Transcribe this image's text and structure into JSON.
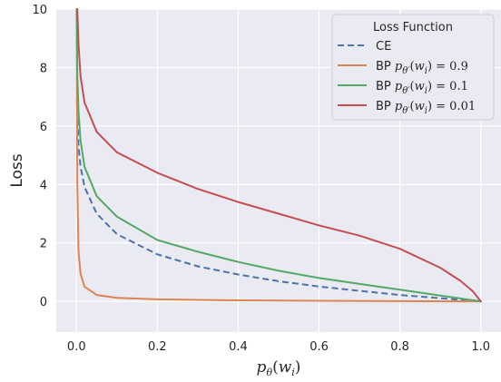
{
  "chart_data": {
    "type": "line",
    "xlabel": "pθ(wi)",
    "ylabel": "Loss",
    "xlim": [
      -0.05,
      1.05
    ],
    "ylim": [
      -1.05,
      10
    ],
    "xticks": [
      0.0,
      0.2,
      0.4,
      0.6,
      0.8,
      1.0
    ],
    "xtick_labels": [
      "0.0",
      "0.2",
      "0.4",
      "0.6",
      "0.8",
      "1.0"
    ],
    "yticks": [
      0,
      2,
      4,
      6,
      8,
      10
    ],
    "ytick_labels": [
      "0",
      "2",
      "4",
      "6",
      "8",
      "10"
    ],
    "grid": true,
    "legend": {
      "title": "Loss Function",
      "position": "top-right"
    },
    "series": [
      {
        "name": "CE",
        "label_math": "",
        "color": "#4c72b0",
        "dash": "dashed",
        "x": [
          0.001,
          0.005,
          0.01,
          0.02,
          0.05,
          0.1,
          0.2,
          0.3,
          0.4,
          0.5,
          0.6,
          0.7,
          0.8,
          0.9,
          1.0
        ],
        "y": [
          6.91,
          5.3,
          4.61,
          3.91,
          3.0,
          2.3,
          1.61,
          1.2,
          0.92,
          0.69,
          0.51,
          0.36,
          0.22,
          0.11,
          0.0
        ]
      },
      {
        "name": "BP ",
        "label_math": "pθ′(wi) = 0.9",
        "color": "#dd8452",
        "dash": "solid",
        "x": [
          0.0005,
          0.002,
          0.005,
          0.01,
          0.02,
          0.05,
          0.1,
          0.2,
          0.4,
          0.6,
          0.8,
          1.0
        ],
        "y": [
          10.0,
          4.1,
          1.7,
          0.95,
          0.5,
          0.22,
          0.12,
          0.07,
          0.035,
          0.02,
          0.01,
          0.0
        ]
      },
      {
        "name": "BP ",
        "label_math": "pθ′(wi) = 0.1",
        "color": "#55a868",
        "dash": "solid",
        "x": [
          0.0005,
          0.002,
          0.005,
          0.01,
          0.02,
          0.05,
          0.1,
          0.2,
          0.3,
          0.4,
          0.5,
          0.6,
          0.7,
          0.8,
          0.9,
          1.0
        ],
        "y": [
          10.0,
          7.8,
          6.5,
          5.5,
          4.6,
          3.6,
          2.9,
          2.1,
          1.7,
          1.35,
          1.05,
          0.8,
          0.6,
          0.4,
          0.2,
          0.0
        ]
      },
      {
        "name": "BP ",
        "label_math": "pθ′(wi) = 0.01",
        "color": "#c44e52",
        "dash": "solid",
        "x": [
          0.002,
          0.005,
          0.01,
          0.02,
          0.05,
          0.1,
          0.2,
          0.3,
          0.4,
          0.5,
          0.6,
          0.7,
          0.8,
          0.9,
          0.95,
          0.98,
          1.0
        ],
        "y": [
          10.0,
          8.8,
          7.7,
          6.8,
          5.8,
          5.1,
          4.4,
          3.85,
          3.4,
          3.0,
          2.6,
          2.25,
          1.8,
          1.15,
          0.7,
          0.35,
          0.0
        ]
      }
    ]
  }
}
